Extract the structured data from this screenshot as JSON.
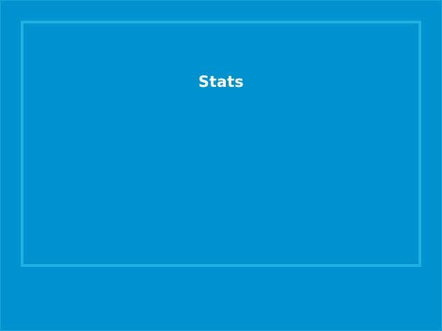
{
  "panel": {
    "title": "Stats"
  },
  "colors": {
    "background": "#0092CE",
    "panel_border": "#1DB2E6",
    "title_text": "#FFFFFF"
  }
}
